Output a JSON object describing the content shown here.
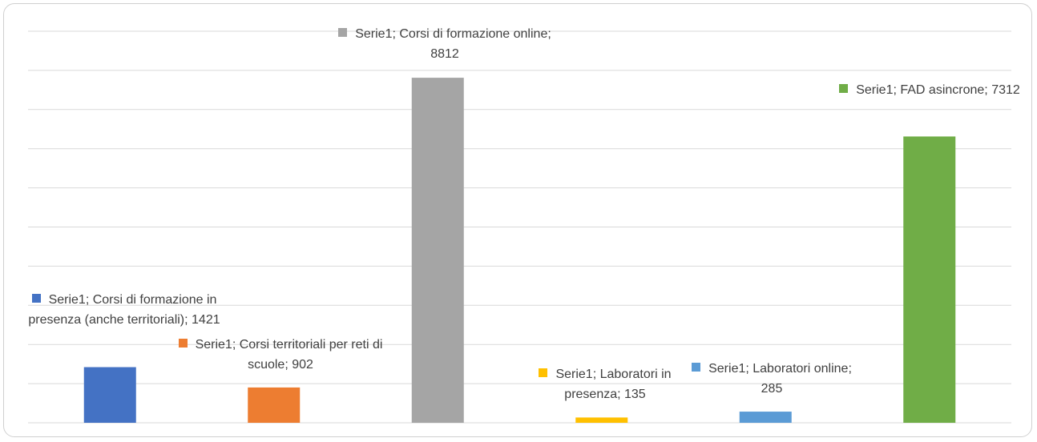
{
  "chart_data": {
    "type": "bar",
    "series": [
      {
        "name": "Serie1",
        "colors": [
          "#4472c4",
          "#ed7d31",
          "#a5a5a5",
          "#ffc000",
          "#5b9bd5",
          "#70ad47"
        ],
        "values": [
          1421,
          902,
          8812,
          135,
          285,
          7312
        ],
        "value_labels": [
          "Serie1; Corsi di formazione in presenza (anche territoriali); 1421",
          "Serie1; Corsi territoriali per reti di scuole; 902",
          "Serie1; Corsi di formazione online; 8812",
          "Serie1; Laboratori in presenza; 135",
          "Serie1; Laboratori online; 285",
          "Serie1; FAD asincrone; 7312"
        ]
      }
    ],
    "ylim": [
      0,
      10000
    ],
    "yticks": [
      0,
      1000,
      2000,
      3000,
      4000,
      5000,
      6000,
      7000,
      8000,
      9000,
      10000
    ],
    "grid": true
  }
}
